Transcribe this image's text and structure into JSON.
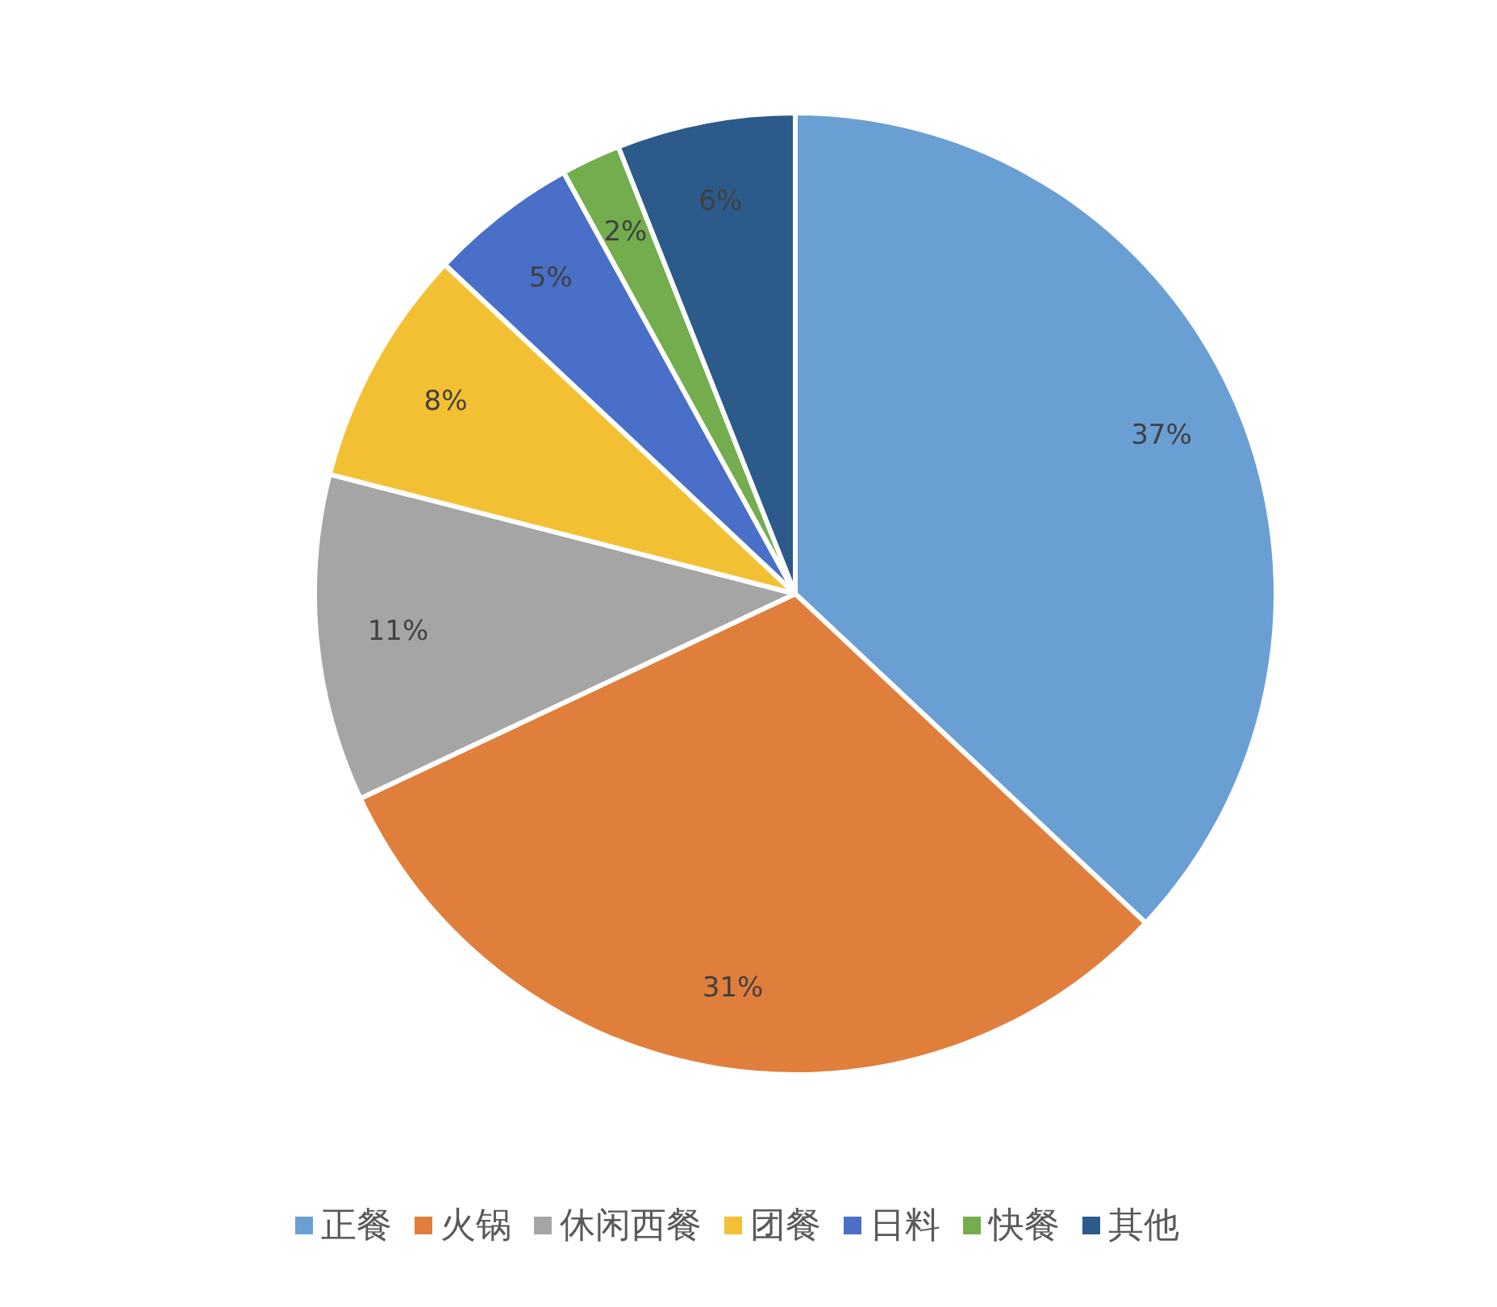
{
  "chart_data": {
    "type": "pie",
    "categories": [
      "正餐",
      "火锅",
      "休闲西餐",
      "团餐",
      "日料",
      "快餐",
      "其他"
    ],
    "values": [
      37,
      31,
      11,
      8,
      5,
      2,
      6
    ],
    "colors": [
      "#6a9fd4",
      "#e07f3c",
      "#a5a5a5",
      "#f4c033",
      "#4a6fc8",
      "#73ad4e",
      "#2c5a8a"
    ],
    "value_labels": [
      "37%",
      "31%",
      "11%",
      "8%",
      "5%",
      "2%",
      "6%"
    ],
    "legend": "bottom"
  }
}
